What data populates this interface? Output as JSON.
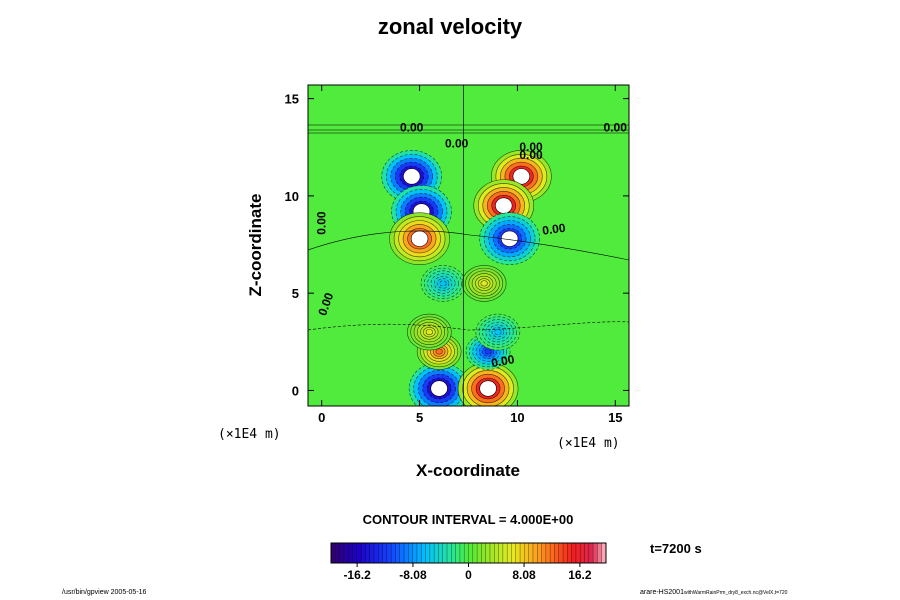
{
  "chart_data": {
    "type": "heatmap",
    "title": "zonal velocity",
    "xlabel": "X-coordinate",
    "ylabel": "Z-coordinate",
    "x_unit": "(×1E4 m)",
    "z_unit": "(×1E4 m)",
    "xlim": [
      -0.7,
      15.7
    ],
    "ylim": [
      -0.8,
      15.7
    ],
    "x_ticks": [
      "0",
      "5",
      "10",
      "15"
    ],
    "y_ticks": [
      "0",
      "5",
      "10",
      "15"
    ],
    "contour_interval_label": "CONTOUR INTERVAL = 4.000E+00",
    "contour_labels": [
      "0.00",
      "0.00",
      "0.00",
      "0.00",
      "0.00",
      "0.00",
      "0.00",
      "0.00",
      "0.00"
    ],
    "colorbar": {
      "range": [
        -20,
        20
      ],
      "tick_labels": [
        "-16.2",
        "-8.08",
        "0",
        "8.08",
        "16.2"
      ],
      "tick_values": [
        -16.2,
        -8.08,
        0,
        8.08,
        16.2
      ]
    },
    "features": [
      {
        "x": 4.6,
        "z": 11.0,
        "value": -20
      },
      {
        "x": 5.1,
        "z": 9.2,
        "value": -20
      },
      {
        "x": 5.0,
        "z": 7.8,
        "value": 16
      },
      {
        "x": 10.2,
        "z": 11.0,
        "value": 20
      },
      {
        "x": 9.3,
        "z": 9.5,
        "value": 20
      },
      {
        "x": 9.6,
        "z": 7.8,
        "value": -16
      },
      {
        "x": 6.0,
        "z": 0.1,
        "value": -20
      },
      {
        "x": 8.5,
        "z": 0.1,
        "value": 20
      },
      {
        "x": 6.0,
        "z": 2.0,
        "value": 12
      },
      {
        "x": 8.5,
        "z": 2.0,
        "value": -12
      },
      {
        "x": 6.2,
        "z": 5.5,
        "value": -6
      },
      {
        "x": 8.3,
        "z": 5.5,
        "value": 6
      },
      {
        "x": 5.5,
        "z": 3.0,
        "value": 6
      },
      {
        "x": 9.0,
        "z": 3.0,
        "value": -6
      }
    ]
  },
  "time_label": "t=7200 s",
  "footer_left": "/usr/bin/gpview 2005-05-16",
  "footer_right_main": "arare-HS2001",
  "footer_right_small": "withWarmRainPrm_dry8_exch.nc@VelX,t=720"
}
